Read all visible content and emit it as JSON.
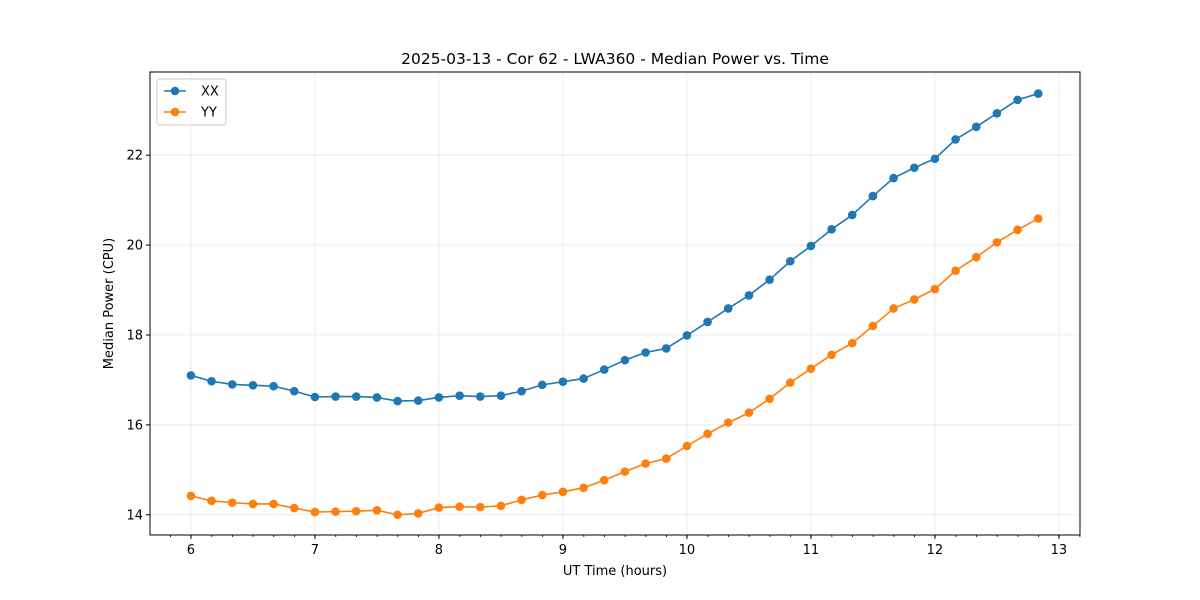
{
  "chart_data": {
    "type": "line",
    "title": "2025-03-13 - Cor 62 - LWA360 - Median Power vs. Time",
    "xlabel": "UT Time (hours)",
    "ylabel": "Median Power (CPU)",
    "xlim": [
      5.67,
      13.17
    ],
    "ylim": [
      13.55,
      23.85
    ],
    "xticks": [
      6,
      7,
      8,
      9,
      10,
      11,
      12,
      13
    ],
    "yticks": [
      14,
      16,
      18,
      20,
      22
    ],
    "x_minor_step": 0.1667,
    "grid": true,
    "legend_position": "top-left",
    "x": [
      6.0,
      6.1667,
      6.3333,
      6.5,
      6.6667,
      6.8333,
      7.0,
      7.1667,
      7.3333,
      7.5,
      7.6667,
      7.8333,
      8.0,
      8.1667,
      8.3333,
      8.5,
      8.6667,
      8.8333,
      9.0,
      9.1667,
      9.3333,
      9.5,
      9.6667,
      9.8333,
      10.0,
      10.1667,
      10.3333,
      10.5,
      10.6667,
      10.8333,
      11.0,
      11.1667,
      11.3333,
      11.5,
      11.6667,
      11.8333,
      12.0,
      12.1667,
      12.3333,
      12.5,
      12.6667,
      12.8333
    ],
    "series": [
      {
        "name": "XX",
        "color": "#1f77b4",
        "values": [
          17.1,
          16.97,
          16.9,
          16.88,
          16.86,
          16.75,
          16.62,
          16.63,
          16.63,
          16.61,
          16.53,
          16.54,
          16.61,
          16.65,
          16.63,
          16.65,
          16.75,
          16.89,
          16.96,
          17.03,
          17.23,
          17.44,
          17.61,
          17.7,
          17.99,
          18.29,
          18.59,
          18.88,
          19.23,
          19.64,
          19.98,
          20.35,
          20.67,
          21.09,
          21.49,
          21.72,
          21.92,
          22.35,
          22.63,
          22.93,
          23.23,
          23.37
        ]
      },
      {
        "name": "YY",
        "color": "#ff7f0e",
        "values": [
          14.42,
          14.31,
          14.27,
          14.24,
          14.24,
          14.15,
          14.06,
          14.07,
          14.08,
          14.1,
          14.0,
          14.03,
          14.16,
          14.18,
          14.17,
          14.2,
          14.33,
          14.44,
          14.51,
          14.6,
          14.77,
          14.96,
          15.14,
          15.25,
          15.53,
          15.8,
          16.05,
          16.27,
          16.58,
          16.94,
          17.25,
          17.56,
          17.82,
          18.2,
          18.59,
          18.79,
          19.02,
          19.43,
          19.73,
          20.06,
          20.34,
          20.59
        ]
      }
    ]
  }
}
